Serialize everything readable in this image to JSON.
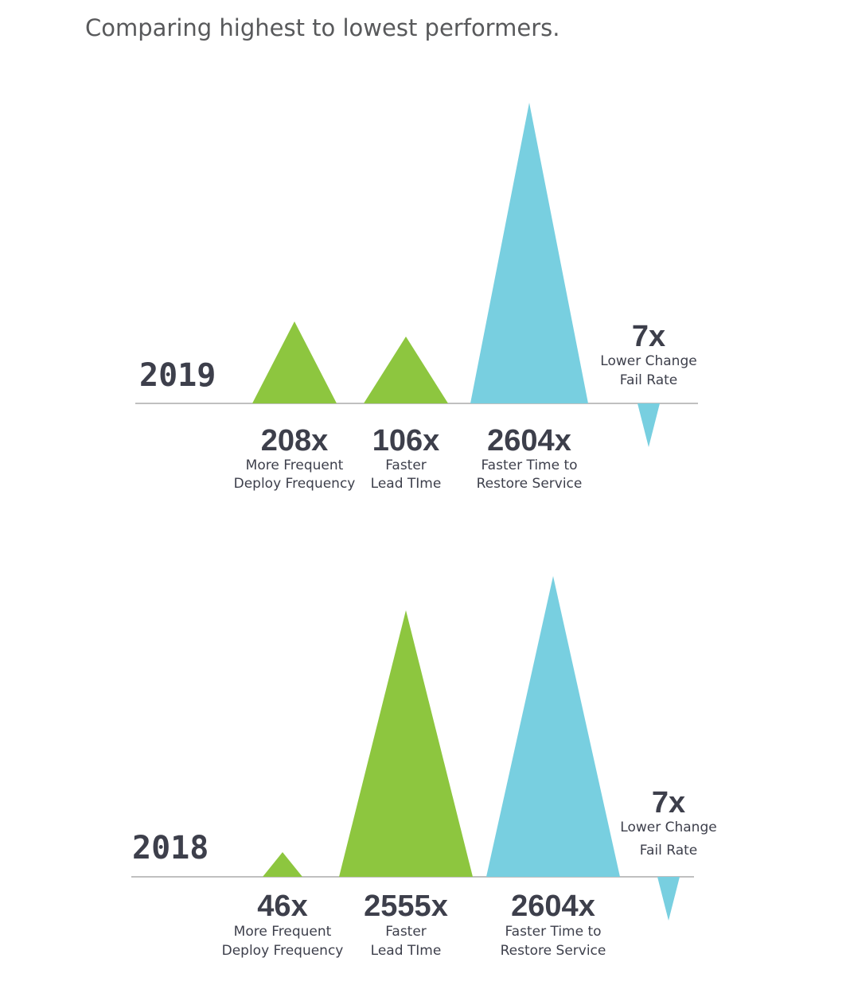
{
  "title": "Comparing highest to lowest performers.",
  "colors": {
    "green": "#8dc63f",
    "blue": "#78cfe0",
    "text": "#3d3f4b",
    "axis": "#9a9a9a"
  },
  "chart_data": [
    {
      "type": "bar",
      "year": "2019",
      "categories": [
        "Deploy Frequency",
        "Lead Time",
        "Time to Restore Service",
        "Change Fail Rate"
      ],
      "values": [
        208,
        106,
        2604,
        7
      ],
      "bars": [
        {
          "value_label": "208x",
          "desc": [
            "More Frequent",
            "Deploy Frequency"
          ],
          "color": "green",
          "direction": "up"
        },
        {
          "value_label": "106x",
          "desc": [
            "Faster",
            "Lead TIme"
          ],
          "color": "green",
          "direction": "up"
        },
        {
          "value_label": "2604x",
          "desc": [
            "Faster Time to",
            "Restore Service"
          ],
          "color": "blue",
          "direction": "up"
        },
        {
          "value_label": "7x",
          "desc": [
            "Lower Change",
            "Fail Rate"
          ],
          "color": "blue",
          "direction": "down"
        }
      ]
    },
    {
      "type": "bar",
      "year": "2018",
      "categories": [
        "Deploy Frequency",
        "Lead Time",
        "Time to Restore Service",
        "Change Fail Rate"
      ],
      "values": [
        46,
        2555,
        2604,
        7
      ],
      "bars": [
        {
          "value_label": "46x",
          "desc": [
            "More Frequent",
            "Deploy Frequency"
          ],
          "color": "green",
          "direction": "up"
        },
        {
          "value_label": "2555x",
          "desc": [
            "Faster",
            "Lead TIme"
          ],
          "color": "green",
          "direction": "up"
        },
        {
          "value_label": "2604x",
          "desc": [
            "Faster Time to",
            "Restore Service"
          ],
          "color": "blue",
          "direction": "up"
        },
        {
          "value_label": "7x",
          "desc": [
            "Lower Change",
            "Fail Rate"
          ],
          "color": "blue",
          "direction": "down"
        }
      ]
    }
  ]
}
